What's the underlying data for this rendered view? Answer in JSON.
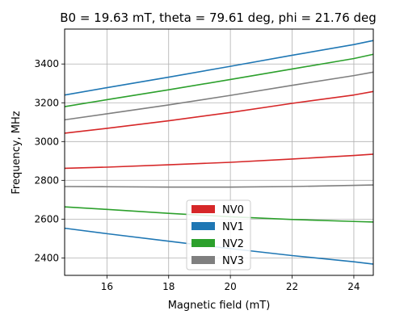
{
  "chart_data": {
    "type": "line",
    "title": "B0 = 19.63 mT, theta = 79.61 deg, phi = 21.76 deg",
    "xlabel": "Magnetic field (mT)",
    "ylabel": "Frequency, MHz",
    "xlim": [
      14.63,
      24.63
    ],
    "ylim": [
      2310,
      3580
    ],
    "xticks": [
      16,
      18,
      20,
      22,
      24
    ],
    "yticks": [
      2400,
      2600,
      2800,
      3000,
      3200,
      3400
    ],
    "grid": true,
    "legend_position": "lower-center",
    "legend": [
      {
        "name": "NV0",
        "color": "#d62728"
      },
      {
        "name": "NV1",
        "color": "#1f77b4"
      },
      {
        "name": "NV2",
        "color": "#2ca02c"
      },
      {
        "name": "NV3",
        "color": "#7f7f7f"
      }
    ],
    "x": [
      14.63,
      16,
      18,
      20,
      22,
      24,
      24.63
    ],
    "series": [
      {
        "group": "NV0",
        "color": "#d62728",
        "values": [
          3043,
          3068,
          3107,
          3150,
          3197,
          3240,
          3258
        ]
      },
      {
        "group": "NV0",
        "color": "#d62728",
        "values": [
          2862,
          2868,
          2880,
          2893,
          2910,
          2928,
          2935
        ]
      },
      {
        "group": "NV1",
        "color": "#1f77b4",
        "values": [
          3240,
          3278,
          3332,
          3388,
          3445,
          3500,
          3521
        ]
      },
      {
        "group": "NV1",
        "color": "#1f77b4",
        "values": [
          2553,
          2525,
          2486,
          2448,
          2412,
          2380,
          2368
        ]
      },
      {
        "group": "NV2",
        "color": "#2ca02c",
        "values": [
          3180,
          3216,
          3267,
          3320,
          3374,
          3428,
          3450
        ]
      },
      {
        "group": "NV2",
        "color": "#2ca02c",
        "values": [
          2663,
          2650,
          2630,
          2612,
          2598,
          2588,
          2585
        ]
      },
      {
        "group": "NV3",
        "color": "#7f7f7f",
        "values": [
          3112,
          3143,
          3189,
          3238,
          3290,
          3340,
          3358
        ]
      },
      {
        "group": "NV3",
        "color": "#7f7f7f",
        "values": [
          2768,
          2767,
          2765,
          2765,
          2768,
          2774,
          2776
        ]
      }
    ]
  }
}
